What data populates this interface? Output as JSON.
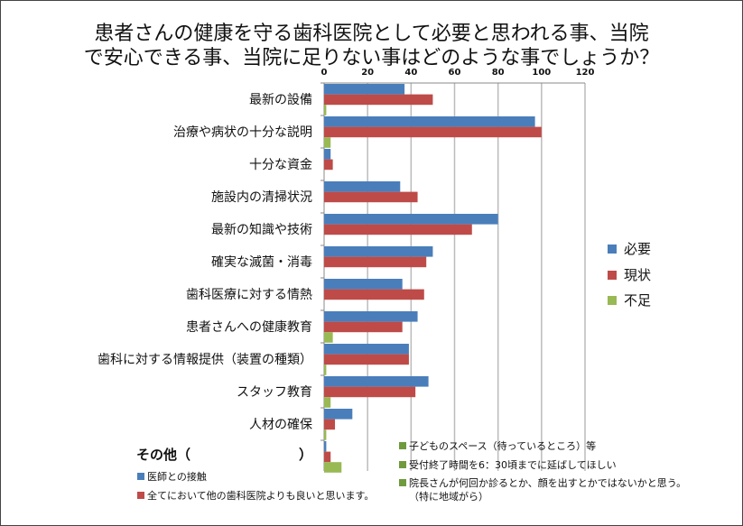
{
  "chart_data": {
    "type": "bar",
    "orientation": "horizontal",
    "title_lines": [
      "患者さんの健康を守る歯科医院として必要と思われる事、当院",
      "で安心できる事、当院に足りない事はどのような事でしょうか？"
    ],
    "categories": [
      "最新の設備",
      "治療や病状の十分な説明",
      "十分な資金",
      "施設内の清掃状況",
      "最新の知識や技術",
      "確実な滅菌・消毒",
      "歯科医療に対する情熱",
      "患者さんへの健康教育",
      "歯科に対する情報提供（装置の種類）",
      "スタッフ教育",
      "人材の確保",
      "その他（　　　　　　　　）"
    ],
    "series": [
      {
        "name": "必要",
        "color": "#4a7ebb",
        "values": [
          37,
          97,
          3,
          35,
          80,
          50,
          36,
          43,
          39,
          48,
          13,
          1
        ]
      },
      {
        "name": "現状",
        "color": "#be4b48",
        "values": [
          50,
          100,
          4,
          43,
          68,
          47,
          46,
          36,
          39,
          42,
          5,
          3
        ]
      },
      {
        "name": "不足",
        "color": "#98b954",
        "values": [
          1,
          3,
          0,
          0,
          0,
          0,
          0,
          4,
          1,
          3,
          1,
          8
        ]
      }
    ],
    "xlim": [
      0,
      120
    ],
    "xticks": [
      0,
      20,
      40,
      60,
      80,
      100,
      120
    ],
    "grid": true,
    "axis_position": "top",
    "legend_position": "right",
    "other_notes": {
      "blue": [
        "医師との接触"
      ],
      "red": [
        "全てにおいて他の歯科医院よりも良いと思います。"
      ],
      "green": [
        "子どものスペース（待っているところ）等",
        "受付終了時間を6：30頃までに延ばしてほしい",
        "院長さんが何回か診るとか、顔を出すとかではないかと思う。",
        "（特に地域がら）"
      ]
    }
  }
}
